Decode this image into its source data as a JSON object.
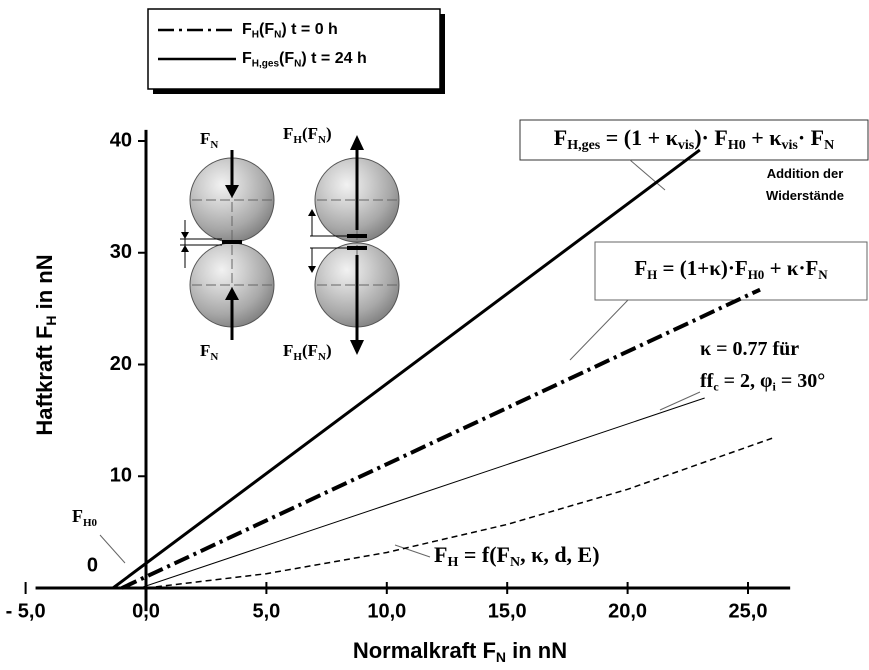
{
  "chart_data": {
    "type": "line",
    "x_label": [
      "Normalkraft  F",
      "N",
      " in nN"
    ],
    "y_label": [
      "Haftkraft  F",
      "H",
      " in nN"
    ],
    "xlim": [
      -5.5,
      27
    ],
    "ylim": [
      -1,
      41
    ],
    "xticks": [
      {
        "value": -5,
        "label": "- 5,0"
      },
      {
        "value": 0,
        "label": "0,0"
      },
      {
        "value": 5,
        "label": "5,0"
      },
      {
        "value": 10,
        "label": "10,0"
      },
      {
        "value": 15,
        "label": "15,0"
      },
      {
        "value": 20,
        "label": "20,0"
      },
      {
        "value": 25,
        "label": "25,0"
      }
    ],
    "yticks": [
      0,
      10,
      20,
      30,
      40
    ],
    "series": [
      {
        "name": [
          "F",
          "H",
          "(F",
          "N",
          ")      t = 0 h"
        ],
        "color": "#000000",
        "width": 4,
        "dash": "dash-dot",
        "x": [
          -1,
          25.5
        ],
        "values": [
          0,
          26.7
        ]
      },
      {
        "name": [
          "F",
          "H,ges",
          "(F",
          "N",
          ") t = 24 h"
        ],
        "color": "#000000",
        "width": 3,
        "dash": "solid",
        "x": [
          -1.37,
          23
        ],
        "values": [
          0,
          39.2
        ]
      },
      {
        "color": "#000000",
        "width": 1,
        "dash": "solid",
        "x": [
          -0.25,
          23.2
        ],
        "values": [
          0,
          17
        ]
      },
      {
        "color": "#000000",
        "width": 1.5,
        "dash": "dashed",
        "x": [
          0,
          5,
          10,
          15,
          20,
          26
        ],
        "values": [
          0,
          1.28,
          3.18,
          5.69,
          8.83,
          13.4
        ]
      }
    ],
    "annotations": [
      [
        "F",
        "H,ges",
        " = (1 + κ",
        "vis",
        ")· F",
        "H0",
        " + κ",
        "vis",
        "· F",
        "N"
      ],
      [
        "Addition der"
      ],
      [
        "Widerstände"
      ],
      [
        "F",
        "H",
        " = (1+κ)·F",
        "H0",
        " + κ·F",
        "N"
      ],
      [
        "κ = 0.77 für"
      ],
      [
        "ff",
        "c",
        " = 2, φ",
        "i",
        " = 30°"
      ],
      [
        "F",
        "H",
        " = f(F",
        "N",
        ", κ, d, E)"
      ],
      [
        "F",
        "H0"
      ],
      [
        "F",
        "N"
      ],
      [
        "F",
        "H",
        "(F",
        "N",
        ")"
      ],
      [
        "F",
        "N"
      ],
      [
        "F",
        "H",
        "(F",
        "N",
        ")"
      ]
    ]
  }
}
